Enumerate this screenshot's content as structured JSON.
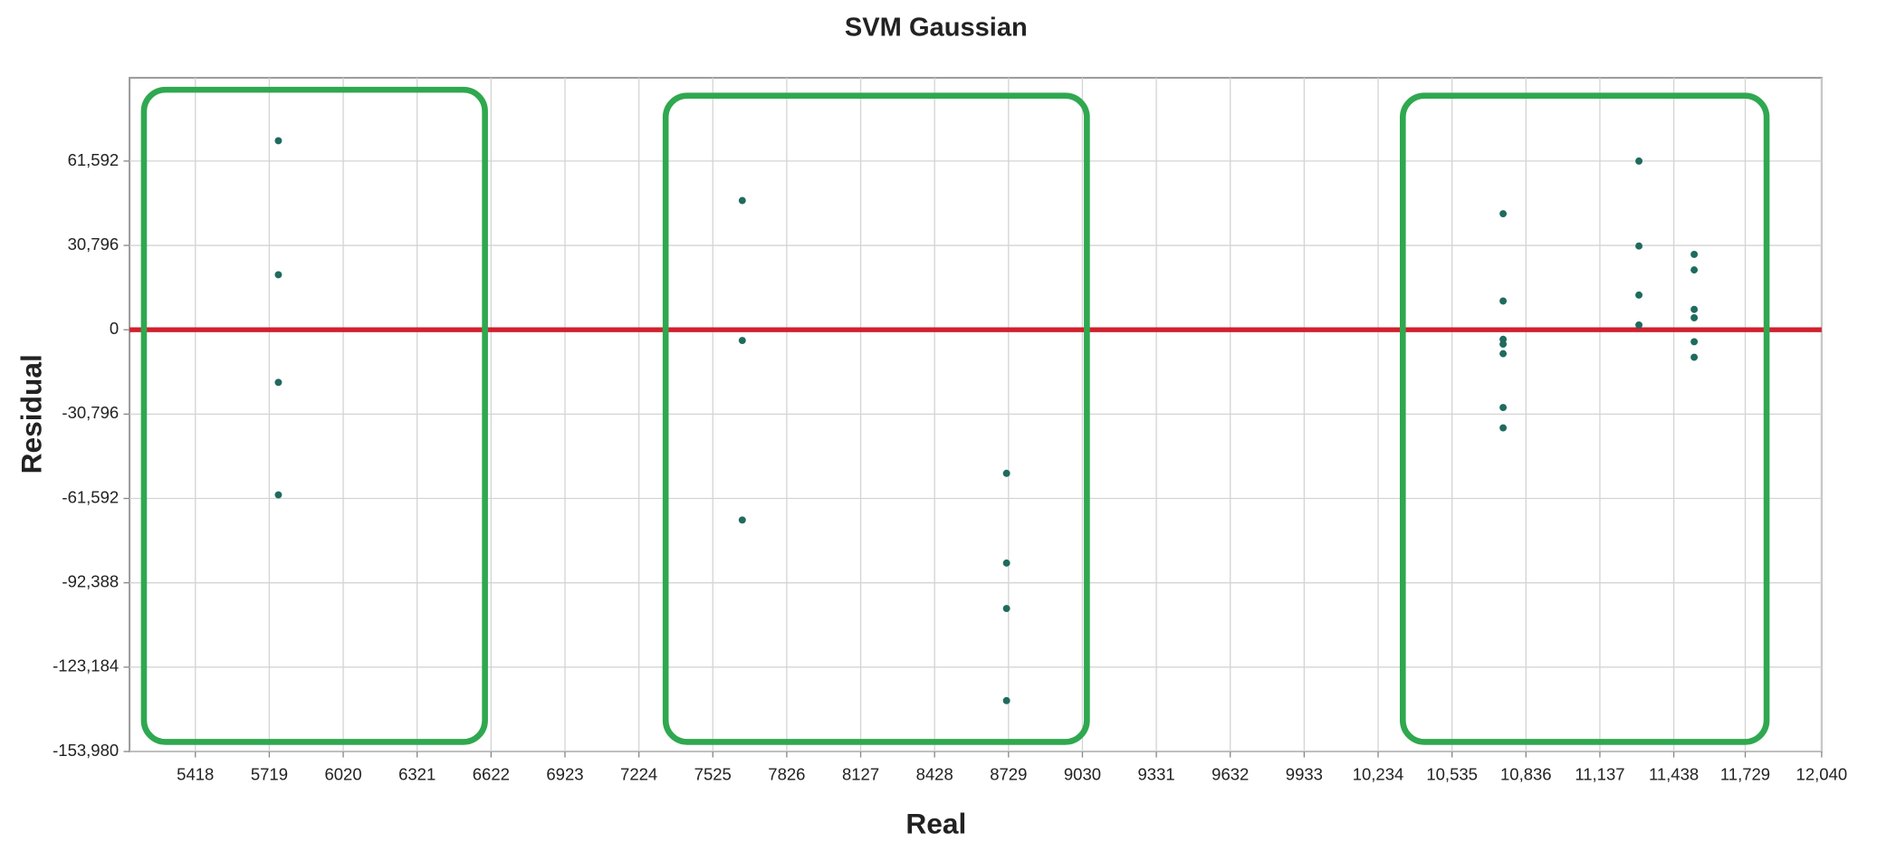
{
  "chart_data": {
    "type": "scatter",
    "title": "SVM Gaussian",
    "x_label": "Real",
    "y_label": "Residual",
    "xlim": [
      5150,
      12040
    ],
    "ylim": [
      -153980,
      92000
    ],
    "xticks": [
      5418,
      5719,
      6020,
      6321,
      6622,
      6923,
      7224,
      7525,
      7826,
      8127,
      8428,
      8729,
      9030,
      9331,
      9632,
      9933,
      {
        "value": 10234,
        "label": "10,234"
      },
      {
        "value": 10535,
        "label": "10,535"
      },
      {
        "value": 10836,
        "label": "10,836"
      },
      {
        "value": 11137,
        "label": "11,137"
      },
      {
        "value": 11438,
        "label": "11,438"
      },
      {
        "value": 11729,
        "label": "11,729"
      },
      {
        "value": 12040,
        "label": "12,040"
      }
    ],
    "yticks": [
      {
        "value": 61592,
        "label": "61,592"
      },
      {
        "value": 30796,
        "label": "30,796"
      },
      0,
      {
        "value": -30796,
        "label": "-30,796"
      },
      {
        "value": -61592,
        "label": "-61,592"
      },
      {
        "value": -92388,
        "label": "-92,388"
      },
      {
        "value": -123184,
        "label": "-123,184"
      },
      {
        "value": -153980,
        "label": "-153,980"
      }
    ],
    "grid": true,
    "series": [
      {
        "name": "Residual",
        "color": "#1f6b5e",
        "x": [
          5756,
          5756,
          5756,
          5756,
          7645,
          7645,
          7645,
          8721,
          8721,
          8721,
          8721,
          10743,
          10743,
          10743,
          10743,
          10743,
          10743,
          10743,
          11296,
          11296,
          11296,
          11296,
          11521,
          11521,
          11521,
          11521,
          11521,
          11521
        ],
        "values": [
          69017,
          20094,
          -19220,
          -60280,
          47177,
          -3931,
          -69454,
          -52418,
          -85180,
          -101780,
          -135415,
          42371,
          10484,
          -3495,
          -5242,
          -8737,
          -28394,
          -35820,
          61592,
          30577,
          12668,
          1747,
          27519,
          21841,
          7426,
          4368,
          -4368,
          -10047
        ]
      }
    ]
  }
}
